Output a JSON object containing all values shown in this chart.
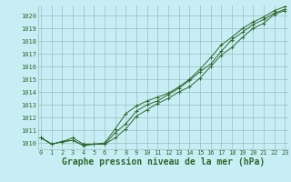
{
  "x": [
    0,
    1,
    2,
    3,
    4,
    5,
    6,
    7,
    8,
    9,
    10,
    11,
    12,
    13,
    14,
    15,
    16,
    17,
    18,
    19,
    20,
    21,
    22,
    23
  ],
  "line_upper": [
    1010.4,
    1009.9,
    1010.1,
    1010.4,
    1009.9,
    1009.9,
    1010.0,
    1011.1,
    1012.3,
    1012.9,
    1013.3,
    1013.6,
    1013.9,
    1014.4,
    1015.0,
    1015.8,
    1016.7,
    1017.7,
    1018.3,
    1019.0,
    1019.5,
    1019.9,
    1020.4,
    1020.7
  ],
  "line_mid": [
    1010.4,
    1009.9,
    1010.1,
    1010.2,
    1009.8,
    1009.9,
    1009.9,
    1010.8,
    1011.5,
    1012.5,
    1013.0,
    1013.3,
    1013.8,
    1014.3,
    1014.9,
    1015.6,
    1016.2,
    1017.2,
    1018.1,
    1018.7,
    1019.3,
    1019.7,
    1020.2,
    1020.5
  ],
  "line_lower": [
    1010.4,
    1009.9,
    1010.1,
    1010.2,
    1009.8,
    1009.9,
    1009.9,
    1010.4,
    1011.1,
    1012.1,
    1012.6,
    1013.1,
    1013.5,
    1014.0,
    1014.4,
    1015.1,
    1016.0,
    1016.9,
    1017.5,
    1018.3,
    1019.0,
    1019.4,
    1020.1,
    1020.4
  ],
  "ylim": [
    1009.5,
    1020.8
  ],
  "yticks": [
    1010,
    1011,
    1012,
    1013,
    1014,
    1015,
    1016,
    1017,
    1018,
    1019,
    1020
  ],
  "xticks": [
    0,
    1,
    2,
    3,
    4,
    5,
    6,
    7,
    8,
    9,
    10,
    11,
    12,
    13,
    14,
    15,
    16,
    17,
    18,
    19,
    20,
    21,
    22,
    23
  ],
  "line_color": "#2d6a2d",
  "bg_color": "#c8eef5",
  "grid_color": "#9bbfbf",
  "xlabel": "Graphe pression niveau de la mer (hPa)",
  "xlabel_color": "#2d6a2d",
  "tick_color": "#2d6a2d",
  "tick_fontsize": 5.0,
  "xlabel_fontsize": 7.0,
  "marker": "+"
}
